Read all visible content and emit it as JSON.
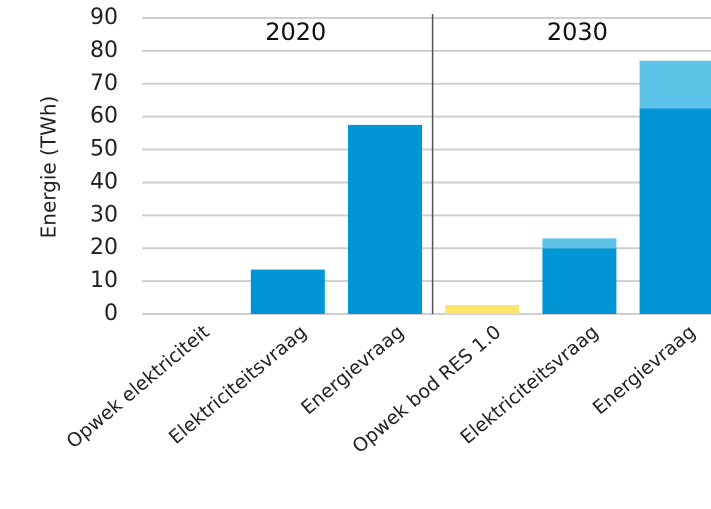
{
  "chart_data": {
    "type": "bar",
    "ylabel": "Energie (TWh)",
    "xlabel": "",
    "ylim": [
      0,
      90
    ],
    "yticks": [
      0,
      10,
      20,
      30,
      40,
      50,
      60,
      70,
      80,
      90
    ],
    "grid": true,
    "groups": [
      {
        "label": "2020",
        "categories": [
          "Opwek elektriciteit",
          "Elektriciteitsvraag",
          "Energievraag"
        ]
      },
      {
        "label": "2030",
        "categories": [
          "Opwek bod RES 1.0",
          "Elektriciteitsvraag",
          "Energievraag"
        ]
      }
    ],
    "categories": [
      "Opwek elektriciteit",
      "Elektriciteitsvraag",
      "Energievraag",
      "Opwek bod RES 1.0",
      "Elektriciteitsvraag",
      "Energievraag"
    ],
    "bars": [
      {
        "category": "Opwek elektriciteit",
        "group": "2020",
        "segments": []
      },
      {
        "category": "Elektriciteitsvraag",
        "group": "2020",
        "segments": [
          {
            "value": 13.5,
            "color": "#0096d6"
          }
        ]
      },
      {
        "category": "Energievraag",
        "group": "2020",
        "segments": [
          {
            "value": 57.5,
            "color": "#0096d6"
          }
        ]
      },
      {
        "category": "Opwek bod RES 1.0",
        "group": "2030",
        "segments": [
          {
            "value": 2.7,
            "color": "#ffe36a"
          }
        ]
      },
      {
        "category": "Elektriciteitsvraag",
        "group": "2030",
        "segments": [
          {
            "value": 20,
            "color": "#0096d6"
          },
          {
            "value": 3,
            "color": "#5ec3e8"
          }
        ]
      },
      {
        "category": "Energievraag",
        "group": "2030",
        "segments": [
          {
            "value": 62.5,
            "color": "#0096d6"
          },
          {
            "value": 14.5,
            "color": "#5ec3e8"
          }
        ]
      }
    ],
    "colors": {
      "grid": "#cfcfcf",
      "divider": "#555555"
    }
  }
}
